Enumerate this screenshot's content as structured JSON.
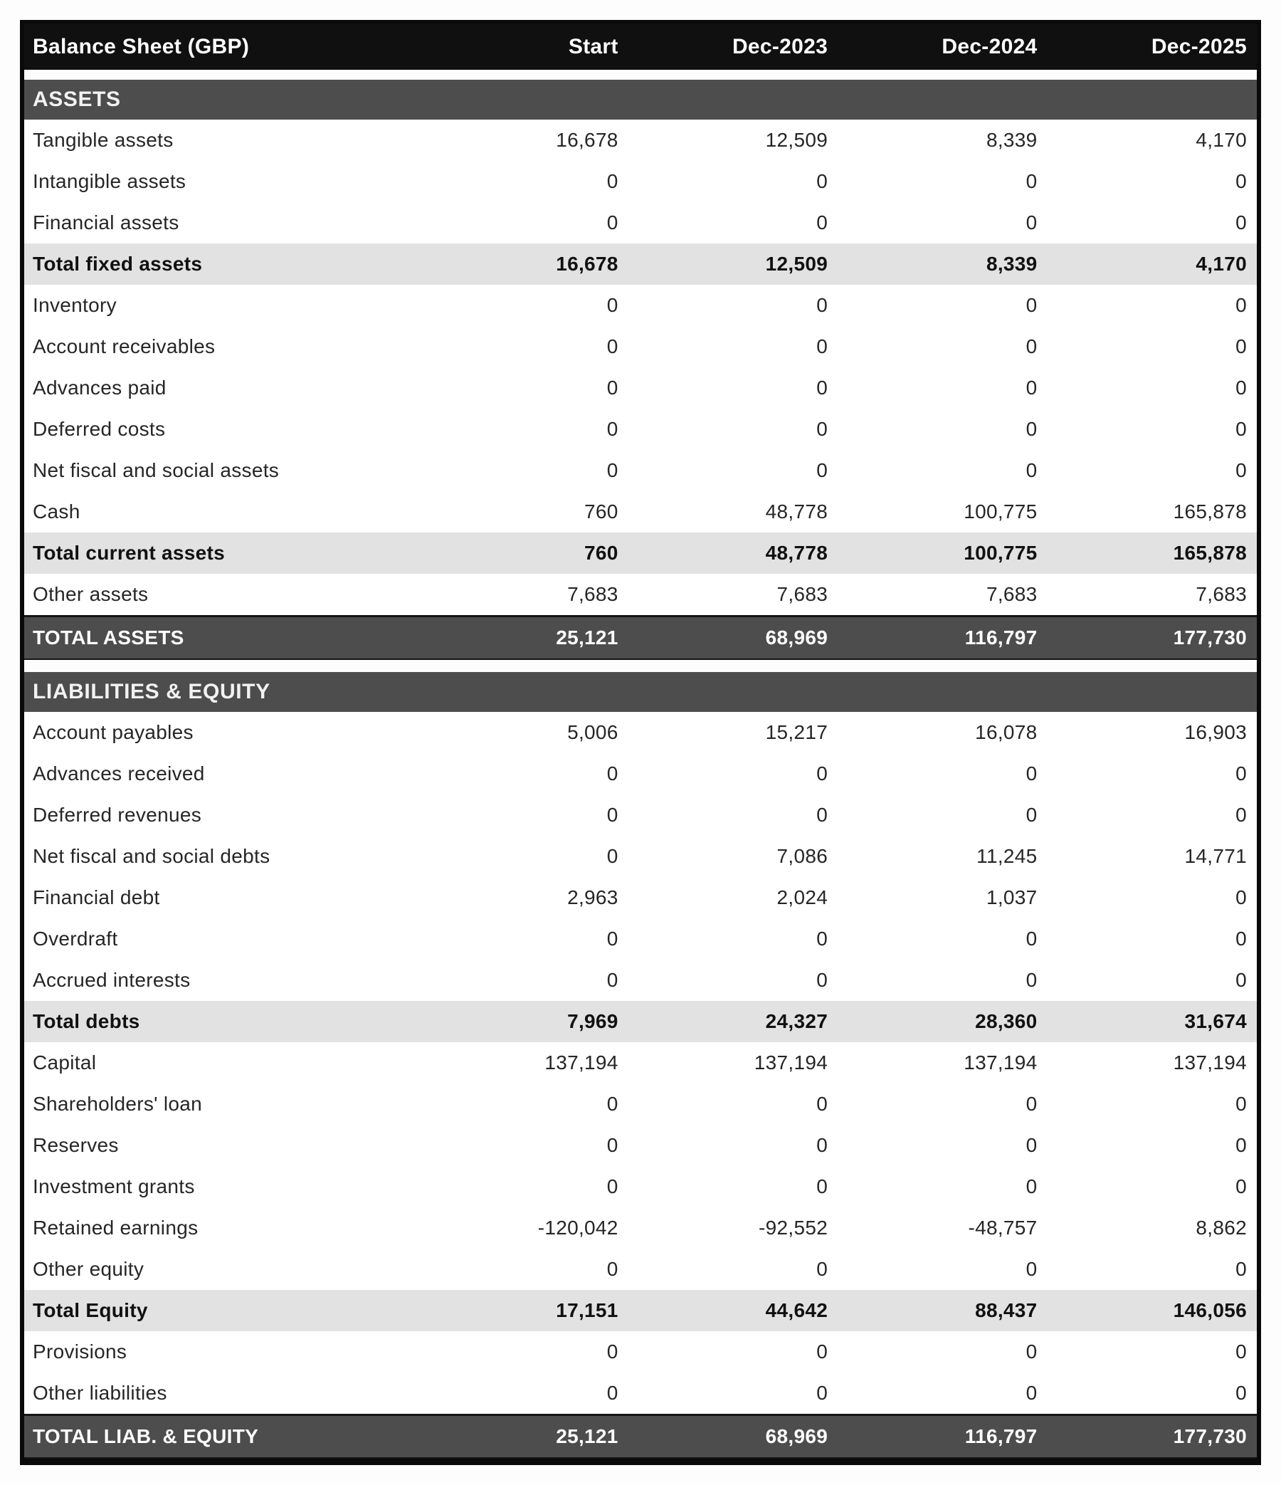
{
  "title": "Balance Sheet (GBP)",
  "colors": {
    "header_bg": "#101010",
    "section_bg": "#4d4d4d",
    "grand_total_bg": "#4d4d4d",
    "subtotal_bg": "#e2e2e2",
    "border": "#0a0a0a",
    "text_dark": "#262626",
    "text_light": "#ffffff"
  },
  "header": {
    "title": "Balance Sheet (GBP)",
    "columns": [
      "Start",
      "Dec-2023",
      "Dec-2024",
      "Dec-2025"
    ]
  },
  "table": {
    "rows": [
      {
        "type": "section",
        "label": "ASSETS",
        "values": null
      },
      {
        "type": "data",
        "label": "Tangible assets",
        "values": [
          "16,678",
          "12,509",
          "8,339",
          "4,170"
        ]
      },
      {
        "type": "data",
        "label": "Intangible assets",
        "values": [
          "0",
          "0",
          "0",
          "0"
        ]
      },
      {
        "type": "data",
        "label": "Financial assets",
        "values": [
          "0",
          "0",
          "0",
          "0"
        ]
      },
      {
        "type": "subtotal",
        "label": "Total fixed assets",
        "values": [
          "16,678",
          "12,509",
          "8,339",
          "4,170"
        ]
      },
      {
        "type": "data",
        "label": "Inventory",
        "values": [
          "0",
          "0",
          "0",
          "0"
        ]
      },
      {
        "type": "data",
        "label": "Account receivables",
        "values": [
          "0",
          "0",
          "0",
          "0"
        ]
      },
      {
        "type": "data",
        "label": "Advances paid",
        "values": [
          "0",
          "0",
          "0",
          "0"
        ]
      },
      {
        "type": "data",
        "label": "Deferred costs",
        "values": [
          "0",
          "0",
          "0",
          "0"
        ]
      },
      {
        "type": "data",
        "label": "Net fiscal and social assets",
        "values": [
          "0",
          "0",
          "0",
          "0"
        ]
      },
      {
        "type": "data",
        "label": "Cash",
        "values": [
          "760",
          "48,778",
          "100,775",
          "165,878"
        ]
      },
      {
        "type": "subtotal",
        "label": "Total current assets",
        "values": [
          "760",
          "48,778",
          "100,775",
          "165,878"
        ]
      },
      {
        "type": "data",
        "label": "Other assets",
        "values": [
          "7,683",
          "7,683",
          "7,683",
          "7,683"
        ]
      },
      {
        "type": "grand",
        "label": "TOTAL ASSETS",
        "values": [
          "25,121",
          "68,969",
          "116,797",
          "177,730"
        ]
      },
      {
        "type": "gap",
        "label": "",
        "values": null
      },
      {
        "type": "section",
        "label": "LIABILITIES & EQUITY",
        "values": null
      },
      {
        "type": "data",
        "label": "Account payables",
        "values": [
          "5,006",
          "15,217",
          "16,078",
          "16,903"
        ]
      },
      {
        "type": "data",
        "label": "Advances received",
        "values": [
          "0",
          "0",
          "0",
          "0"
        ]
      },
      {
        "type": "data",
        "label": "Deferred revenues",
        "values": [
          "0",
          "0",
          "0",
          "0"
        ]
      },
      {
        "type": "data",
        "label": "Net fiscal and social debts",
        "values": [
          "0",
          "7,086",
          "11,245",
          "14,771"
        ]
      },
      {
        "type": "data",
        "label": "Financial debt",
        "values": [
          "2,963",
          "2,024",
          "1,037",
          "0"
        ]
      },
      {
        "type": "data",
        "label": "Overdraft",
        "values": [
          "0",
          "0",
          "0",
          "0"
        ]
      },
      {
        "type": "data",
        "label": "Accrued interests",
        "values": [
          "0",
          "0",
          "0",
          "0"
        ]
      },
      {
        "type": "subtotal",
        "label": "Total debts",
        "values": [
          "7,969",
          "24,327",
          "28,360",
          "31,674"
        ]
      },
      {
        "type": "data",
        "label": "Capital",
        "values": [
          "137,194",
          "137,194",
          "137,194",
          "137,194"
        ]
      },
      {
        "type": "data",
        "label": "Shareholders' loan",
        "values": [
          "0",
          "0",
          "0",
          "0"
        ]
      },
      {
        "type": "data",
        "label": "Reserves",
        "values": [
          "0",
          "0",
          "0",
          "0"
        ]
      },
      {
        "type": "data",
        "label": "Investment grants",
        "values": [
          "0",
          "0",
          "0",
          "0"
        ]
      },
      {
        "type": "data",
        "label": "Retained earnings",
        "values": [
          "-120,042",
          "-92,552",
          "-48,757",
          "8,862"
        ]
      },
      {
        "type": "data",
        "label": "Other equity",
        "values": [
          "0",
          "0",
          "0",
          "0"
        ]
      },
      {
        "type": "subtotal",
        "label": "Total Equity",
        "values": [
          "17,151",
          "44,642",
          "88,437",
          "146,056"
        ]
      },
      {
        "type": "data",
        "label": "Provisions",
        "values": [
          "0",
          "0",
          "0",
          "0"
        ]
      },
      {
        "type": "data",
        "label": "Other liabilities",
        "values": [
          "0",
          "0",
          "0",
          "0"
        ]
      },
      {
        "type": "grand",
        "label": "TOTAL LIAB. & EQUITY",
        "values": [
          "25,121",
          "68,969",
          "116,797",
          "177,730"
        ]
      }
    ]
  }
}
